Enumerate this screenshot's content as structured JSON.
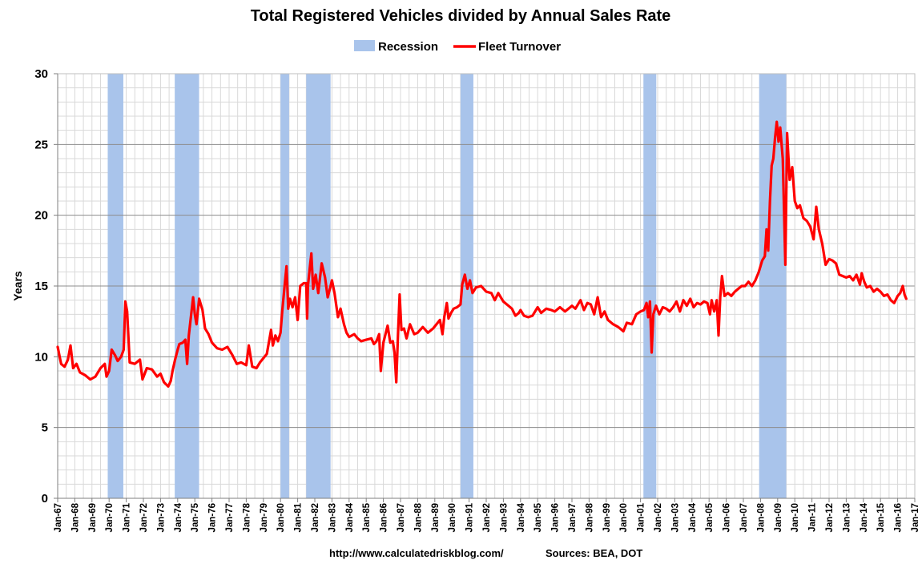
{
  "chart_data": {
    "type": "line",
    "title": "Total Registered Vehicles divided by Annual Sales Rate",
    "ylabel": "Years",
    "xlabel": "",
    "ylim": [
      0,
      30
    ],
    "xlim": [
      1967.0,
      2017.0
    ],
    "yticks": [
      0,
      5,
      10,
      15,
      20,
      25,
      30
    ],
    "xtick_labels": [
      "Jan-67",
      "Jan-68",
      "Jan-69",
      "Jan-70",
      "Jan-71",
      "Jan-72",
      "Jan-73",
      "Jan-74",
      "Jan-75",
      "Jan-76",
      "Jan-77",
      "Jan-78",
      "Jan-79",
      "Jan-80",
      "Jan-81",
      "Jan-82",
      "Jan-83",
      "Jan-84",
      "Jan-85",
      "Jan-86",
      "Jan-87",
      "Jan-88",
      "Jan-89",
      "Jan-90",
      "Jan-91",
      "Jan-92",
      "Jan-93",
      "Jan-94",
      "Jan-95",
      "Jan-96",
      "Jan-97",
      "Jan-98",
      "Jan-99",
      "Jan-00",
      "Jan-01",
      "Jan-02",
      "Jan-03",
      "Jan-04",
      "Jan-05",
      "Jan-06",
      "Jan-07",
      "Jan-08",
      "Jan-09",
      "Jan-10",
      "Jan-11",
      "Jan-12",
      "Jan-13",
      "Jan-14",
      "Jan-15",
      "Jan-16",
      "Jan-17"
    ],
    "legend": {
      "placement": "top-center",
      "items": [
        {
          "label": "Recession",
          "type": "area",
          "color": "#A9C4EB"
        },
        {
          "label": "Fleet Turnover",
          "type": "line",
          "color": "#FF0000"
        }
      ]
    },
    "recessions": [
      [
        1969.92,
        1970.83
      ],
      [
        1973.83,
        1975.25
      ],
      [
        1980.0,
        1980.5
      ],
      [
        1981.5,
        1982.92
      ],
      [
        1990.5,
        1991.25
      ],
      [
        2001.17,
        2001.92
      ],
      [
        2007.92,
        2009.5
      ]
    ],
    "series": [
      {
        "name": "Fleet Turnover",
        "color": "#FF0000",
        "points": [
          [
            1967.0,
            10.7
          ],
          [
            1967.2,
            9.5
          ],
          [
            1967.4,
            9.3
          ],
          [
            1967.6,
            9.8
          ],
          [
            1967.75,
            10.8
          ],
          [
            1967.9,
            9.2
          ],
          [
            1968.1,
            9.5
          ],
          [
            1968.3,
            8.9
          ],
          [
            1968.6,
            8.7
          ],
          [
            1968.9,
            8.4
          ],
          [
            1969.2,
            8.6
          ],
          [
            1969.5,
            9.2
          ],
          [
            1969.75,
            9.5
          ],
          [
            1969.85,
            8.6
          ],
          [
            1970.0,
            9.0
          ],
          [
            1970.15,
            10.5
          ],
          [
            1970.35,
            10.1
          ],
          [
            1970.5,
            9.7
          ],
          [
            1970.7,
            10.0
          ],
          [
            1970.85,
            10.5
          ],
          [
            1970.95,
            13.9
          ],
          [
            1971.05,
            13.2
          ],
          [
            1971.2,
            9.6
          ],
          [
            1971.5,
            9.5
          ],
          [
            1971.8,
            9.8
          ],
          [
            1971.95,
            8.4
          ],
          [
            1972.2,
            9.2
          ],
          [
            1972.5,
            9.1
          ],
          [
            1972.8,
            8.6
          ],
          [
            1973.0,
            8.8
          ],
          [
            1973.2,
            8.2
          ],
          [
            1973.45,
            7.9
          ],
          [
            1973.6,
            8.3
          ],
          [
            1973.7,
            9.0
          ],
          [
            1973.85,
            9.8
          ],
          [
            1974.0,
            10.5
          ],
          [
            1974.1,
            10.9
          ],
          [
            1974.3,
            11.0
          ],
          [
            1974.45,
            11.2
          ],
          [
            1974.55,
            9.5
          ],
          [
            1974.65,
            11.5
          ],
          [
            1974.8,
            13.1
          ],
          [
            1974.9,
            14.2
          ],
          [
            1975.0,
            13.0
          ],
          [
            1975.1,
            12.3
          ],
          [
            1975.25,
            14.1
          ],
          [
            1975.45,
            13.3
          ],
          [
            1975.6,
            12.0
          ],
          [
            1975.8,
            11.6
          ],
          [
            1976.0,
            11.0
          ],
          [
            1976.3,
            10.6
          ],
          [
            1976.6,
            10.5
          ],
          [
            1976.9,
            10.7
          ],
          [
            1977.0,
            10.5
          ],
          [
            1977.2,
            10.1
          ],
          [
            1977.45,
            9.5
          ],
          [
            1977.7,
            9.6
          ],
          [
            1978.0,
            9.4
          ],
          [
            1978.15,
            10.8
          ],
          [
            1978.35,
            9.3
          ],
          [
            1978.6,
            9.2
          ],
          [
            1978.8,
            9.6
          ],
          [
            1979.0,
            9.9
          ],
          [
            1979.2,
            10.2
          ],
          [
            1979.45,
            11.9
          ],
          [
            1979.55,
            10.8
          ],
          [
            1979.7,
            11.5
          ],
          [
            1979.85,
            11.1
          ],
          [
            1980.0,
            11.7
          ],
          [
            1980.1,
            13.2
          ],
          [
            1980.25,
            15.2
          ],
          [
            1980.35,
            16.4
          ],
          [
            1980.45,
            13.4
          ],
          [
            1980.55,
            14.1
          ],
          [
            1980.7,
            13.5
          ],
          [
            1980.85,
            14.2
          ],
          [
            1981.0,
            12.6
          ],
          [
            1981.15,
            15.0
          ],
          [
            1981.35,
            15.2
          ],
          [
            1981.5,
            15.2
          ],
          [
            1981.55,
            12.7
          ],
          [
            1981.6,
            15.0
          ],
          [
            1981.7,
            16.2
          ],
          [
            1981.8,
            17.3
          ],
          [
            1981.9,
            14.8
          ],
          [
            1982.05,
            15.8
          ],
          [
            1982.2,
            14.5
          ],
          [
            1982.4,
            16.6
          ],
          [
            1982.6,
            15.6
          ],
          [
            1982.75,
            14.2
          ],
          [
            1982.9,
            14.9
          ],
          [
            1983.0,
            15.4
          ],
          [
            1983.15,
            14.5
          ],
          [
            1983.35,
            12.8
          ],
          [
            1983.5,
            13.4
          ],
          [
            1983.7,
            12.3
          ],
          [
            1983.85,
            11.7
          ],
          [
            1984.0,
            11.4
          ],
          [
            1984.3,
            11.6
          ],
          [
            1984.5,
            11.3
          ],
          [
            1984.7,
            11.1
          ],
          [
            1985.0,
            11.2
          ],
          [
            1985.3,
            11.3
          ],
          [
            1985.45,
            10.9
          ],
          [
            1985.6,
            11.1
          ],
          [
            1985.75,
            11.6
          ],
          [
            1985.85,
            9.0
          ],
          [
            1986.0,
            11.0
          ],
          [
            1986.25,
            12.2
          ],
          [
            1986.4,
            11.0
          ],
          [
            1986.55,
            11.1
          ],
          [
            1986.65,
            10.3
          ],
          [
            1986.75,
            8.2
          ],
          [
            1986.85,
            11.5
          ],
          [
            1986.95,
            14.4
          ],
          [
            1987.05,
            11.9
          ],
          [
            1987.2,
            12.0
          ],
          [
            1987.35,
            11.3
          ],
          [
            1987.55,
            12.3
          ],
          [
            1987.8,
            11.6
          ],
          [
            1988.0,
            11.7
          ],
          [
            1988.3,
            12.1
          ],
          [
            1988.6,
            11.7
          ],
          [
            1988.9,
            12.0
          ],
          [
            1989.1,
            12.3
          ],
          [
            1989.3,
            12.6
          ],
          [
            1989.45,
            11.6
          ],
          [
            1989.55,
            12.8
          ],
          [
            1989.7,
            13.8
          ],
          [
            1989.8,
            12.7
          ],
          [
            1989.95,
            13.1
          ],
          [
            1990.1,
            13.4
          ],
          [
            1990.3,
            13.5
          ],
          [
            1990.5,
            13.7
          ],
          [
            1990.6,
            15.1
          ],
          [
            1990.75,
            15.8
          ],
          [
            1990.9,
            14.8
          ],
          [
            1991.05,
            15.4
          ],
          [
            1991.2,
            14.5
          ],
          [
            1991.4,
            14.9
          ],
          [
            1991.7,
            15.0
          ],
          [
            1992.0,
            14.6
          ],
          [
            1992.3,
            14.5
          ],
          [
            1992.5,
            14.0
          ],
          [
            1992.7,
            14.5
          ],
          [
            1993.0,
            13.9
          ],
          [
            1993.3,
            13.6
          ],
          [
            1993.5,
            13.4
          ],
          [
            1993.7,
            12.9
          ],
          [
            1993.9,
            13.1
          ],
          [
            1994.0,
            13.3
          ],
          [
            1994.2,
            12.9
          ],
          [
            1994.45,
            12.8
          ],
          [
            1994.7,
            12.9
          ],
          [
            1995.0,
            13.5
          ],
          [
            1995.2,
            13.1
          ],
          [
            1995.5,
            13.4
          ],
          [
            1995.8,
            13.3
          ],
          [
            1996.0,
            13.2
          ],
          [
            1996.3,
            13.5
          ],
          [
            1996.6,
            13.2
          ],
          [
            1996.9,
            13.5
          ],
          [
            1997.0,
            13.6
          ],
          [
            1997.2,
            13.4
          ],
          [
            1997.5,
            14.0
          ],
          [
            1997.7,
            13.3
          ],
          [
            1997.9,
            13.8
          ],
          [
            1998.1,
            13.7
          ],
          [
            1998.3,
            13.0
          ],
          [
            1998.5,
            14.2
          ],
          [
            1998.7,
            12.8
          ],
          [
            1998.9,
            13.2
          ],
          [
            1999.1,
            12.6
          ],
          [
            1999.4,
            12.3
          ],
          [
            1999.7,
            12.1
          ],
          [
            2000.0,
            11.8
          ],
          [
            2000.2,
            12.4
          ],
          [
            2000.5,
            12.3
          ],
          [
            2000.75,
            13.0
          ],
          [
            2001.0,
            13.2
          ],
          [
            2001.2,
            13.3
          ],
          [
            2001.35,
            13.8
          ],
          [
            2001.45,
            12.8
          ],
          [
            2001.55,
            13.9
          ],
          [
            2001.65,
            10.3
          ],
          [
            2001.75,
            13.0
          ],
          [
            2001.9,
            13.6
          ],
          [
            2002.1,
            13.0
          ],
          [
            2002.3,
            13.5
          ],
          [
            2002.5,
            13.4
          ],
          [
            2002.7,
            13.2
          ],
          [
            2002.9,
            13.5
          ],
          [
            2003.1,
            13.9
          ],
          [
            2003.3,
            13.2
          ],
          [
            2003.5,
            14.0
          ],
          [
            2003.7,
            13.6
          ],
          [
            2003.9,
            14.1
          ],
          [
            2004.1,
            13.5
          ],
          [
            2004.3,
            13.8
          ],
          [
            2004.5,
            13.7
          ],
          [
            2004.7,
            13.9
          ],
          [
            2004.9,
            13.8
          ],
          [
            2005.05,
            13.0
          ],
          [
            2005.15,
            14.0
          ],
          [
            2005.3,
            13.2
          ],
          [
            2005.45,
            14.0
          ],
          [
            2005.55,
            11.5
          ],
          [
            2005.65,
            14.2
          ],
          [
            2005.75,
            15.7
          ],
          [
            2005.9,
            14.3
          ],
          [
            2006.1,
            14.5
          ],
          [
            2006.3,
            14.3
          ],
          [
            2006.5,
            14.6
          ],
          [
            2006.7,
            14.8
          ],
          [
            2006.9,
            15.0
          ],
          [
            2007.1,
            15.0
          ],
          [
            2007.3,
            15.3
          ],
          [
            2007.5,
            15.0
          ],
          [
            2007.7,
            15.4
          ],
          [
            2007.9,
            16.0
          ],
          [
            2008.1,
            16.8
          ],
          [
            2008.25,
            17.1
          ],
          [
            2008.35,
            19.0
          ],
          [
            2008.45,
            17.5
          ],
          [
            2008.55,
            21.0
          ],
          [
            2008.65,
            23.5
          ],
          [
            2008.75,
            24.0
          ],
          [
            2008.85,
            25.5
          ],
          [
            2008.95,
            26.6
          ],
          [
            2009.05,
            25.2
          ],
          [
            2009.15,
            26.2
          ],
          [
            2009.3,
            24.0
          ],
          [
            2009.45,
            16.5
          ],
          [
            2009.55,
            25.8
          ],
          [
            2009.7,
            22.5
          ],
          [
            2009.85,
            23.4
          ],
          [
            2010.0,
            21.0
          ],
          [
            2010.15,
            20.5
          ],
          [
            2010.3,
            20.7
          ],
          [
            2010.5,
            19.8
          ],
          [
            2010.7,
            19.6
          ],
          [
            2010.9,
            19.2
          ],
          [
            2011.1,
            18.3
          ],
          [
            2011.25,
            20.6
          ],
          [
            2011.4,
            19.0
          ],
          [
            2011.6,
            18.0
          ],
          [
            2011.8,
            16.5
          ],
          [
            2012.0,
            16.9
          ],
          [
            2012.2,
            16.8
          ],
          [
            2012.4,
            16.6
          ],
          [
            2012.6,
            15.8
          ],
          [
            2012.8,
            15.7
          ],
          [
            2013.0,
            15.6
          ],
          [
            2013.2,
            15.7
          ],
          [
            2013.4,
            15.4
          ],
          [
            2013.6,
            15.8
          ],
          [
            2013.8,
            15.1
          ],
          [
            2013.9,
            15.9
          ],
          [
            2014.05,
            15.3
          ],
          [
            2014.2,
            14.9
          ],
          [
            2014.4,
            15.0
          ],
          [
            2014.6,
            14.6
          ],
          [
            2014.8,
            14.8
          ],
          [
            2015.0,
            14.6
          ],
          [
            2015.2,
            14.3
          ],
          [
            2015.4,
            14.4
          ],
          [
            2015.6,
            14.0
          ],
          [
            2015.8,
            13.8
          ],
          [
            2016.0,
            14.3
          ],
          [
            2016.15,
            14.5
          ],
          [
            2016.3,
            15.0
          ],
          [
            2016.4,
            14.4
          ],
          [
            2016.5,
            14.1
          ]
        ]
      }
    ]
  },
  "footer": {
    "url": "http://www.calculatedriskblog.com/",
    "sources": "Sources: BEA, DOT"
  }
}
